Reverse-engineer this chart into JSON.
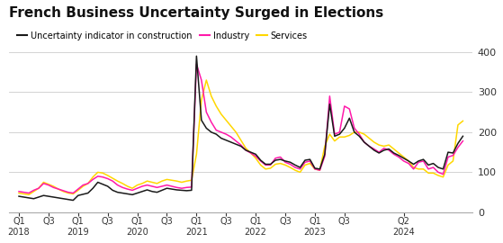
{
  "title": "French Business Uncertainty Surged in Elections",
  "legend_labels": [
    "Uncertainty indicator in construction",
    "Industry",
    "Services"
  ],
  "line_colors": [
    "#1a1a1a",
    "#ff1aaa",
    "#FFD700"
  ],
  "ylim": [
    0,
    400
  ],
  "yticks": [
    0,
    100,
    200,
    300,
    400
  ],
  "background_color": "#ffffff",
  "construction": [
    40,
    38,
    36,
    34,
    38,
    42,
    40,
    38,
    36,
    34,
    32,
    30,
    42,
    45,
    48,
    60,
    75,
    70,
    65,
    55,
    50,
    48,
    46,
    44,
    48,
    52,
    56,
    52,
    50,
    55,
    60,
    58,
    56,
    55,
    54,
    55,
    390,
    230,
    210,
    200,
    195,
    185,
    180,
    175,
    170,
    165,
    155,
    150,
    145,
    130,
    120,
    120,
    130,
    132,
    128,
    125,
    118,
    112,
    130,
    132,
    110,
    108,
    145,
    270,
    190,
    195,
    210,
    235,
    200,
    190,
    175,
    165,
    155,
    148,
    155,
    158,
    148,
    142,
    135,
    128,
    120,
    128,
    132,
    118,
    122,
    112,
    108,
    150,
    148,
    172,
    190
  ],
  "industry": [
    52,
    50,
    48,
    55,
    60,
    72,
    68,
    62,
    58,
    54,
    50,
    48,
    58,
    68,
    72,
    82,
    90,
    88,
    84,
    78,
    68,
    62,
    58,
    55,
    60,
    65,
    68,
    65,
    62,
    65,
    68,
    65,
    62,
    60,
    62,
    63,
    370,
    330,
    250,
    225,
    205,
    200,
    195,
    188,
    178,
    168,
    155,
    148,
    140,
    128,
    118,
    118,
    135,
    138,
    125,
    120,
    112,
    108,
    125,
    128,
    108,
    105,
    140,
    290,
    195,
    200,
    265,
    258,
    210,
    195,
    175,
    165,
    158,
    150,
    160,
    155,
    145,
    138,
    128,
    122,
    108,
    125,
    128,
    108,
    112,
    100,
    95,
    138,
    142,
    162,
    178
  ],
  "services": [
    48,
    46,
    44,
    52,
    60,
    75,
    70,
    65,
    58,
    52,
    48,
    46,
    55,
    65,
    72,
    88,
    100,
    98,
    92,
    85,
    78,
    72,
    65,
    60,
    68,
    72,
    78,
    75,
    72,
    78,
    82,
    80,
    78,
    75,
    78,
    80,
    145,
    280,
    330,
    290,
    265,
    245,
    230,
    215,
    200,
    180,
    160,
    148,
    135,
    118,
    108,
    110,
    120,
    122,
    118,
    112,
    105,
    100,
    118,
    122,
    108,
    105,
    165,
    195,
    178,
    188,
    188,
    192,
    200,
    200,
    195,
    185,
    175,
    168,
    165,
    168,
    158,
    148,
    138,
    128,
    112,
    108,
    108,
    98,
    98,
    92,
    88,
    118,
    128,
    218,
    228
  ],
  "xtick_positions": [
    0,
    6,
    12,
    18,
    24,
    30,
    36,
    42,
    48,
    54,
    60,
    66,
    78
  ],
  "xtick_labels": [
    "Q1\n2018",
    "Q3",
    "Q1\n2019",
    "Q3",
    "Q1\n2020",
    "Q3",
    "Q1\n2021",
    "Q3",
    "Q1\n2022",
    "Q3",
    "Q1\n2023",
    "Q3",
    "Q2\n2024"
  ]
}
